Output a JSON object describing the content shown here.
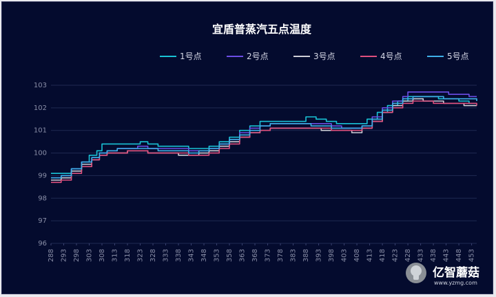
{
  "chart_data": {
    "type": "line",
    "title": "宜盾普蒸汽五点温度",
    "ylim": [
      96,
      103
    ],
    "yticks": [
      96,
      97,
      98,
      99,
      100,
      101,
      102,
      103
    ],
    "x_start": 288,
    "x_end": 455,
    "x_tick_labels": [
      "288",
      "293",
      "298",
      "303",
      "308",
      "313",
      "318",
      "323",
      "328",
      "333",
      "338",
      "343",
      "348",
      "353",
      "358",
      "363",
      "368",
      "373",
      "378",
      "383",
      "388",
      "393",
      "398",
      "403",
      "408",
      "413",
      "418",
      "423",
      "428",
      "433",
      "438",
      "443",
      "448",
      "453"
    ],
    "grid": true,
    "legend_position": "top-center",
    "series": [
      {
        "name": "1号点",
        "color": "#19c3d6",
        "points": [
          [
            288,
            99.1
          ],
          [
            292,
            99.1
          ],
          [
            296,
            99.3
          ],
          [
            300,
            99.6
          ],
          [
            303,
            99.9
          ],
          [
            306,
            100.1
          ],
          [
            308,
            100.4
          ],
          [
            312,
            100.4
          ],
          [
            316,
            100.4
          ],
          [
            320,
            100.4
          ],
          [
            323,
            100.5
          ],
          [
            326,
            100.4
          ],
          [
            330,
            100.3
          ],
          [
            334,
            100.3
          ],
          [
            338,
            100.3
          ],
          [
            342,
            100.2
          ],
          [
            346,
            100.2
          ],
          [
            350,
            100.3
          ],
          [
            354,
            100.5
          ],
          [
            358,
            100.7
          ],
          [
            362,
            101.0
          ],
          [
            366,
            101.2
          ],
          [
            370,
            101.4
          ],
          [
            374,
            101.4
          ],
          [
            378,
            101.4
          ],
          [
            382,
            101.4
          ],
          [
            386,
            101.4
          ],
          [
            388,
            101.6
          ],
          [
            392,
            101.5
          ],
          [
            396,
            101.4
          ],
          [
            400,
            101.3
          ],
          [
            404,
            101.3
          ],
          [
            408,
            101.3
          ],
          [
            412,
            101.5
          ],
          [
            416,
            101.8
          ],
          [
            420,
            102.1
          ],
          [
            424,
            102.3
          ],
          [
            428,
            102.5
          ],
          [
            432,
            102.5
          ],
          [
            436,
            102.5
          ],
          [
            440,
            102.4
          ],
          [
            444,
            102.4
          ],
          [
            448,
            102.3
          ],
          [
            452,
            102.2
          ],
          [
            455,
            102.2
          ]
        ]
      },
      {
        "name": "2号点",
        "color": "#6c4ee6",
        "points": [
          [
            288,
            98.9
          ],
          [
            292,
            99.0
          ],
          [
            296,
            99.3
          ],
          [
            300,
            99.6
          ],
          [
            304,
            99.8
          ],
          [
            307,
            100.0
          ],
          [
            310,
            100.1
          ],
          [
            314,
            100.2
          ],
          [
            318,
            100.2
          ],
          [
            322,
            100.3
          ],
          [
            326,
            100.2
          ],
          [
            330,
            100.2
          ],
          [
            334,
            100.2
          ],
          [
            338,
            100.2
          ],
          [
            342,
            100.1
          ],
          [
            346,
            100.1
          ],
          [
            350,
            100.2
          ],
          [
            354,
            100.4
          ],
          [
            358,
            100.6
          ],
          [
            362,
            100.9
          ],
          [
            366,
            101.1
          ],
          [
            370,
            101.2
          ],
          [
            374,
            101.3
          ],
          [
            378,
            101.3
          ],
          [
            382,
            101.3
          ],
          [
            386,
            101.3
          ],
          [
            390,
            101.3
          ],
          [
            394,
            101.3
          ],
          [
            398,
            101.2
          ],
          [
            402,
            101.1
          ],
          [
            406,
            101.1
          ],
          [
            410,
            101.2
          ],
          [
            414,
            101.6
          ],
          [
            418,
            102.0
          ],
          [
            422,
            102.3
          ],
          [
            426,
            102.5
          ],
          [
            428,
            102.7
          ],
          [
            432,
            102.7
          ],
          [
            436,
            102.7
          ],
          [
            440,
            102.7
          ],
          [
            444,
            102.6
          ],
          [
            448,
            102.6
          ],
          [
            452,
            102.5
          ],
          [
            455,
            102.5
          ]
        ]
      },
      {
        "name": "3号点",
        "color": "#d0d0d8",
        "points": [
          [
            288,
            98.8
          ],
          [
            292,
            98.9
          ],
          [
            296,
            99.2
          ],
          [
            300,
            99.5
          ],
          [
            304,
            99.7
          ],
          [
            307,
            99.9
          ],
          [
            310,
            100.0
          ],
          [
            314,
            100.0
          ],
          [
            318,
            100.1
          ],
          [
            322,
            100.1
          ],
          [
            326,
            100.0
          ],
          [
            330,
            100.0
          ],
          [
            334,
            100.0
          ],
          [
            338,
            99.9
          ],
          [
            342,
            99.9
          ],
          [
            346,
            100.0
          ],
          [
            350,
            100.1
          ],
          [
            354,
            100.3
          ],
          [
            358,
            100.5
          ],
          [
            362,
            100.7
          ],
          [
            366,
            100.9
          ],
          [
            370,
            101.0
          ],
          [
            374,
            101.1
          ],
          [
            378,
            101.1
          ],
          [
            382,
            101.1
          ],
          [
            386,
            101.1
          ],
          [
            390,
            101.1
          ],
          [
            394,
            101.0
          ],
          [
            398,
            101.0
          ],
          [
            402,
            101.0
          ],
          [
            406,
            100.9
          ],
          [
            410,
            101.1
          ],
          [
            414,
            101.4
          ],
          [
            418,
            101.8
          ],
          [
            422,
            102.1
          ],
          [
            426,
            102.3
          ],
          [
            430,
            102.4
          ],
          [
            434,
            102.3
          ],
          [
            438,
            102.3
          ],
          [
            442,
            102.2
          ],
          [
            446,
            102.2
          ],
          [
            450,
            102.1
          ],
          [
            455,
            102.1
          ]
        ]
      },
      {
        "name": "4号点",
        "color": "#e0507e",
        "points": [
          [
            288,
            98.7
          ],
          [
            292,
            98.8
          ],
          [
            296,
            99.1
          ],
          [
            300,
            99.4
          ],
          [
            304,
            99.7
          ],
          [
            307,
            99.9
          ],
          [
            310,
            100.0
          ],
          [
            314,
            100.0
          ],
          [
            318,
            100.1
          ],
          [
            322,
            100.1
          ],
          [
            326,
            100.0
          ],
          [
            330,
            100.0
          ],
          [
            334,
            100.0
          ],
          [
            338,
            100.0
          ],
          [
            342,
            99.9
          ],
          [
            346,
            99.9
          ],
          [
            350,
            100.0
          ],
          [
            354,
            100.2
          ],
          [
            358,
            100.4
          ],
          [
            362,
            100.7
          ],
          [
            366,
            100.9
          ],
          [
            370,
            101.0
          ],
          [
            374,
            101.1
          ],
          [
            378,
            101.1
          ],
          [
            382,
            101.1
          ],
          [
            386,
            101.1
          ],
          [
            390,
            101.1
          ],
          [
            394,
            101.1
          ],
          [
            398,
            101.0
          ],
          [
            402,
            101.0
          ],
          [
            406,
            101.0
          ],
          [
            410,
            101.1
          ],
          [
            414,
            101.4
          ],
          [
            418,
            101.8
          ],
          [
            422,
            102.0
          ],
          [
            426,
            102.2
          ],
          [
            430,
            102.3
          ],
          [
            434,
            102.3
          ],
          [
            438,
            102.2
          ],
          [
            442,
            102.2
          ],
          [
            446,
            102.2
          ],
          [
            450,
            102.2
          ],
          [
            455,
            102.1
          ]
        ]
      },
      {
        "name": "5号点",
        "color": "#3fb0e8",
        "points": [
          [
            288,
            98.9
          ],
          [
            292,
            99.0
          ],
          [
            296,
            99.3
          ],
          [
            300,
            99.6
          ],
          [
            304,
            99.8
          ],
          [
            307,
            100.0
          ],
          [
            310,
            100.1
          ],
          [
            314,
            100.2
          ],
          [
            318,
            100.2
          ],
          [
            322,
            100.2
          ],
          [
            326,
            100.2
          ],
          [
            330,
            100.1
          ],
          [
            334,
            100.1
          ],
          [
            338,
            100.1
          ],
          [
            342,
            100.0
          ],
          [
            346,
            100.1
          ],
          [
            350,
            100.2
          ],
          [
            354,
            100.4
          ],
          [
            358,
            100.6
          ],
          [
            362,
            100.8
          ],
          [
            366,
            101.0
          ],
          [
            370,
            101.2
          ],
          [
            374,
            101.3
          ],
          [
            378,
            101.3
          ],
          [
            382,
            101.3
          ],
          [
            386,
            101.3
          ],
          [
            390,
            101.2
          ],
          [
            394,
            101.2
          ],
          [
            398,
            101.1
          ],
          [
            402,
            101.1
          ],
          [
            406,
            101.1
          ],
          [
            410,
            101.2
          ],
          [
            414,
            101.5
          ],
          [
            418,
            101.9
          ],
          [
            422,
            102.2
          ],
          [
            426,
            102.4
          ],
          [
            430,
            102.5
          ],
          [
            434,
            102.5
          ],
          [
            438,
            102.5
          ],
          [
            442,
            102.4
          ],
          [
            446,
            102.4
          ],
          [
            450,
            102.4
          ],
          [
            455,
            102.3
          ]
        ]
      }
    ]
  },
  "watermark": {
    "text": "亿智蘑菇",
    "url_text": "www.yzmg.com"
  }
}
